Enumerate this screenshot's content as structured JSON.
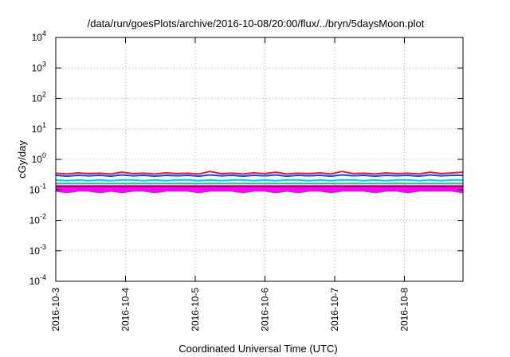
{
  "chart_data": {
    "type": "line",
    "title": "/data/run/goesPlots/archive/2016-10-08/20:00/flux/../bryn/5daysMoon.plot",
    "xlabel": "Coordinated Universal Time (UTC)",
    "ylabel": "cGy/day",
    "yscale": "log",
    "ylim": [
      0.0001,
      10000
    ],
    "xlim": [
      "2016-10-03",
      "2016-10-08T20:00"
    ],
    "grid": true,
    "x_ticks": [
      "2016-10-3",
      "2016-10-4",
      "2016-10-5",
      "2016-10-6",
      "2016-10-7",
      "2016-10-8"
    ],
    "y_ticks": [
      {
        "base": "10",
        "exp": "-4"
      },
      {
        "base": "10",
        "exp": "-3"
      },
      {
        "base": "10",
        "exp": "-2"
      },
      {
        "base": "10",
        "exp": "-1"
      },
      {
        "base": "10",
        "exp": "0"
      },
      {
        "base": "10",
        "exp": "1"
      },
      {
        "base": "10",
        "exp": "2"
      },
      {
        "base": "10",
        "exp": "3"
      },
      {
        "base": "10",
        "exp": "4"
      }
    ],
    "series_colors": [
      "#ff00ff",
      "#8b1a1a",
      "#00cc99",
      "#00ccff",
      "#1f3fff",
      "#e0202a"
    ],
    "series": [
      {
        "color": "#ff00ff",
        "min_values": [
          0.09,
          0.08,
          0.09,
          0.09,
          0.08,
          0.09,
          0.08,
          0.09,
          0.09,
          0.08,
          0.09,
          0.09,
          0.09,
          0.08,
          0.09,
          0.09,
          0.09,
          0.08,
          0.09,
          0.09,
          0.08,
          0.09,
          0.08,
          0.09,
          0.09,
          0.08,
          0.09,
          0.09,
          0.09,
          0.08,
          0.09,
          0.09,
          0.08,
          0.09,
          0.09,
          0.09,
          0.09,
          0.08
        ],
        "max_values": [
          0.14,
          0.14,
          0.14,
          0.14,
          0.14,
          0.14,
          0.14,
          0.14,
          0.14,
          0.14,
          0.14,
          0.14,
          0.14,
          0.14,
          0.14,
          0.14,
          0.14,
          0.14,
          0.14,
          0.14,
          0.14,
          0.14,
          0.14,
          0.14,
          0.14,
          0.14,
          0.14,
          0.14,
          0.14,
          0.14,
          0.14,
          0.14,
          0.14,
          0.14,
          0.14,
          0.14,
          0.14,
          0.14
        ]
      },
      {
        "color": "#8b1a1a",
        "values": [
          0.13,
          0.13,
          0.13,
          0.13,
          0.13,
          0.13,
          0.13,
          0.13,
          0.13,
          0.13,
          0.13,
          0.13,
          0.13,
          0.13,
          0.13,
          0.13,
          0.13,
          0.13,
          0.13,
          0.13,
          0.13,
          0.13,
          0.13,
          0.13,
          0.13,
          0.13,
          0.13,
          0.13,
          0.13,
          0.13,
          0.13,
          0.13,
          0.13,
          0.13,
          0.13,
          0.13,
          0.13,
          0.13
        ]
      },
      {
        "color": "#00cc99",
        "values": [
          0.16,
          0.16,
          0.16,
          0.16,
          0.16,
          0.16,
          0.16,
          0.16,
          0.16,
          0.16,
          0.16,
          0.16,
          0.16,
          0.16,
          0.16,
          0.16,
          0.16,
          0.16,
          0.16,
          0.16,
          0.16,
          0.16,
          0.16,
          0.16,
          0.16,
          0.16,
          0.16,
          0.16,
          0.16,
          0.16,
          0.16,
          0.16,
          0.16,
          0.16,
          0.16,
          0.16,
          0.16,
          0.16
        ]
      },
      {
        "color": "#00ccff",
        "values": [
          0.21,
          0.2,
          0.21,
          0.2,
          0.21,
          0.2,
          0.21,
          0.21,
          0.2,
          0.21,
          0.2,
          0.21,
          0.21,
          0.2,
          0.21,
          0.2,
          0.21,
          0.21,
          0.2,
          0.21,
          0.2,
          0.21,
          0.21,
          0.2,
          0.21,
          0.2,
          0.21,
          0.21,
          0.2,
          0.21,
          0.2,
          0.21,
          0.21,
          0.2,
          0.21,
          0.2,
          0.21,
          0.21
        ]
      },
      {
        "color": "#1f3fff",
        "values": [
          0.3,
          0.28,
          0.3,
          0.29,
          0.3,
          0.28,
          0.31,
          0.29,
          0.3,
          0.28,
          0.3,
          0.29,
          0.3,
          0.28,
          0.31,
          0.29,
          0.3,
          0.28,
          0.3,
          0.29,
          0.31,
          0.28,
          0.3,
          0.29,
          0.3,
          0.28,
          0.31,
          0.29,
          0.3,
          0.28,
          0.3,
          0.29,
          0.3,
          0.28,
          0.31,
          0.29,
          0.3,
          0.3
        ]
      },
      {
        "color": "#e0202a",
        "values": [
          0.35,
          0.33,
          0.36,
          0.34,
          0.35,
          0.33,
          0.38,
          0.34,
          0.35,
          0.33,
          0.36,
          0.34,
          0.35,
          0.33,
          0.4,
          0.34,
          0.35,
          0.33,
          0.36,
          0.34,
          0.38,
          0.33,
          0.35,
          0.34,
          0.36,
          0.33,
          0.4,
          0.34,
          0.35,
          0.33,
          0.36,
          0.34,
          0.35,
          0.33,
          0.38,
          0.34,
          0.36,
          0.38
        ]
      }
    ]
  }
}
